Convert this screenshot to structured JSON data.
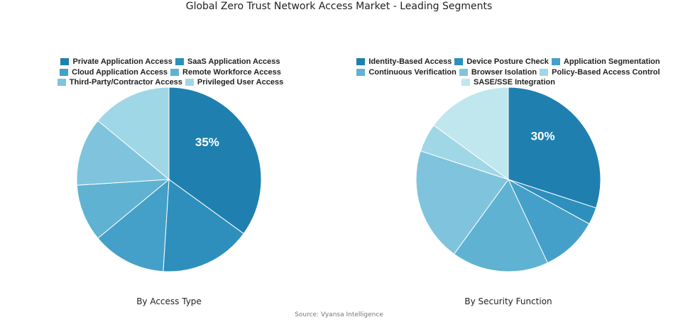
{
  "title": "Global Zero Trust Network Access Market - Leading Segments",
  "source": "Source: Vyansa Intelligence",
  "chart_data": [
    {
      "type": "pie",
      "xlabel": "By Access Type",
      "start_angle_deg": 0,
      "direction": "clockwise",
      "categories": [
        "Private Application Access",
        "SaaS Application Access",
        "Cloud Application Access",
        "Remote Workforce Access",
        "Third-Party/Contractor Access",
        "Privileged User Access"
      ],
      "values": [
        35,
        16,
        13,
        10,
        12,
        14
      ],
      "colors": [
        "#1f80b0",
        "#2e8fbd",
        "#44a0c8",
        "#5fb2d2",
        "#7fc4dc",
        "#a0d7e6"
      ],
      "data_labels": [
        "35%",
        "",
        "",
        "",
        "",
        ""
      ],
      "legend_rows": [
        [
          0,
          1
        ],
        [
          2,
          3
        ],
        [
          4,
          5
        ]
      ]
    },
    {
      "type": "pie",
      "xlabel": "By Security Function",
      "start_angle_deg": 0,
      "direction": "clockwise",
      "categories": [
        "Identity-Based Access",
        "Device Posture Check",
        "Application Segmentation",
        "Continuous Verification",
        "Browser Isolation",
        "Policy-Based Access Control",
        "SASE/SSE Integration"
      ],
      "values": [
        30,
        3,
        10,
        17,
        20,
        5,
        15
      ],
      "colors": [
        "#1f80b0",
        "#2e8fbd",
        "#44a0c8",
        "#5fb2d2",
        "#7fc4dc",
        "#a0d7e6",
        "#c0e6ee"
      ],
      "data_labels": [
        "30%",
        "",
        "",
        "",
        "",
        "",
        ""
      ],
      "legend_rows": [
        [
          0,
          1,
          2
        ],
        [
          3,
          4,
          5
        ],
        [
          6
        ]
      ]
    }
  ]
}
